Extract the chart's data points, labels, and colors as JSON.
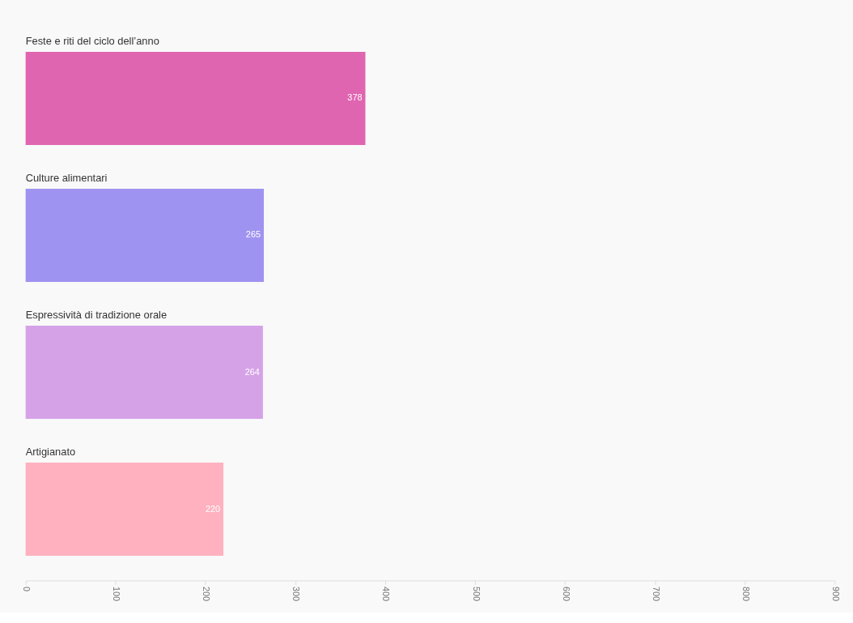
{
  "chart_data": {
    "type": "bar",
    "orientation": "horizontal",
    "categories": [
      "Feste e riti del ciclo dell’anno",
      "Culture alimentari",
      "Espressività di tradizione orale",
      "Artigianato"
    ],
    "values": [
      378,
      265,
      264,
      220
    ],
    "colors": [
      "#e065b1",
      "#9f93f1",
      "#d5a2e8",
      "#ffb1bf"
    ],
    "xlim": [
      0,
      900
    ],
    "xticks": [
      0,
      100,
      200,
      300,
      400,
      500,
      600,
      700,
      800,
      900
    ],
    "data_labels": true
  }
}
